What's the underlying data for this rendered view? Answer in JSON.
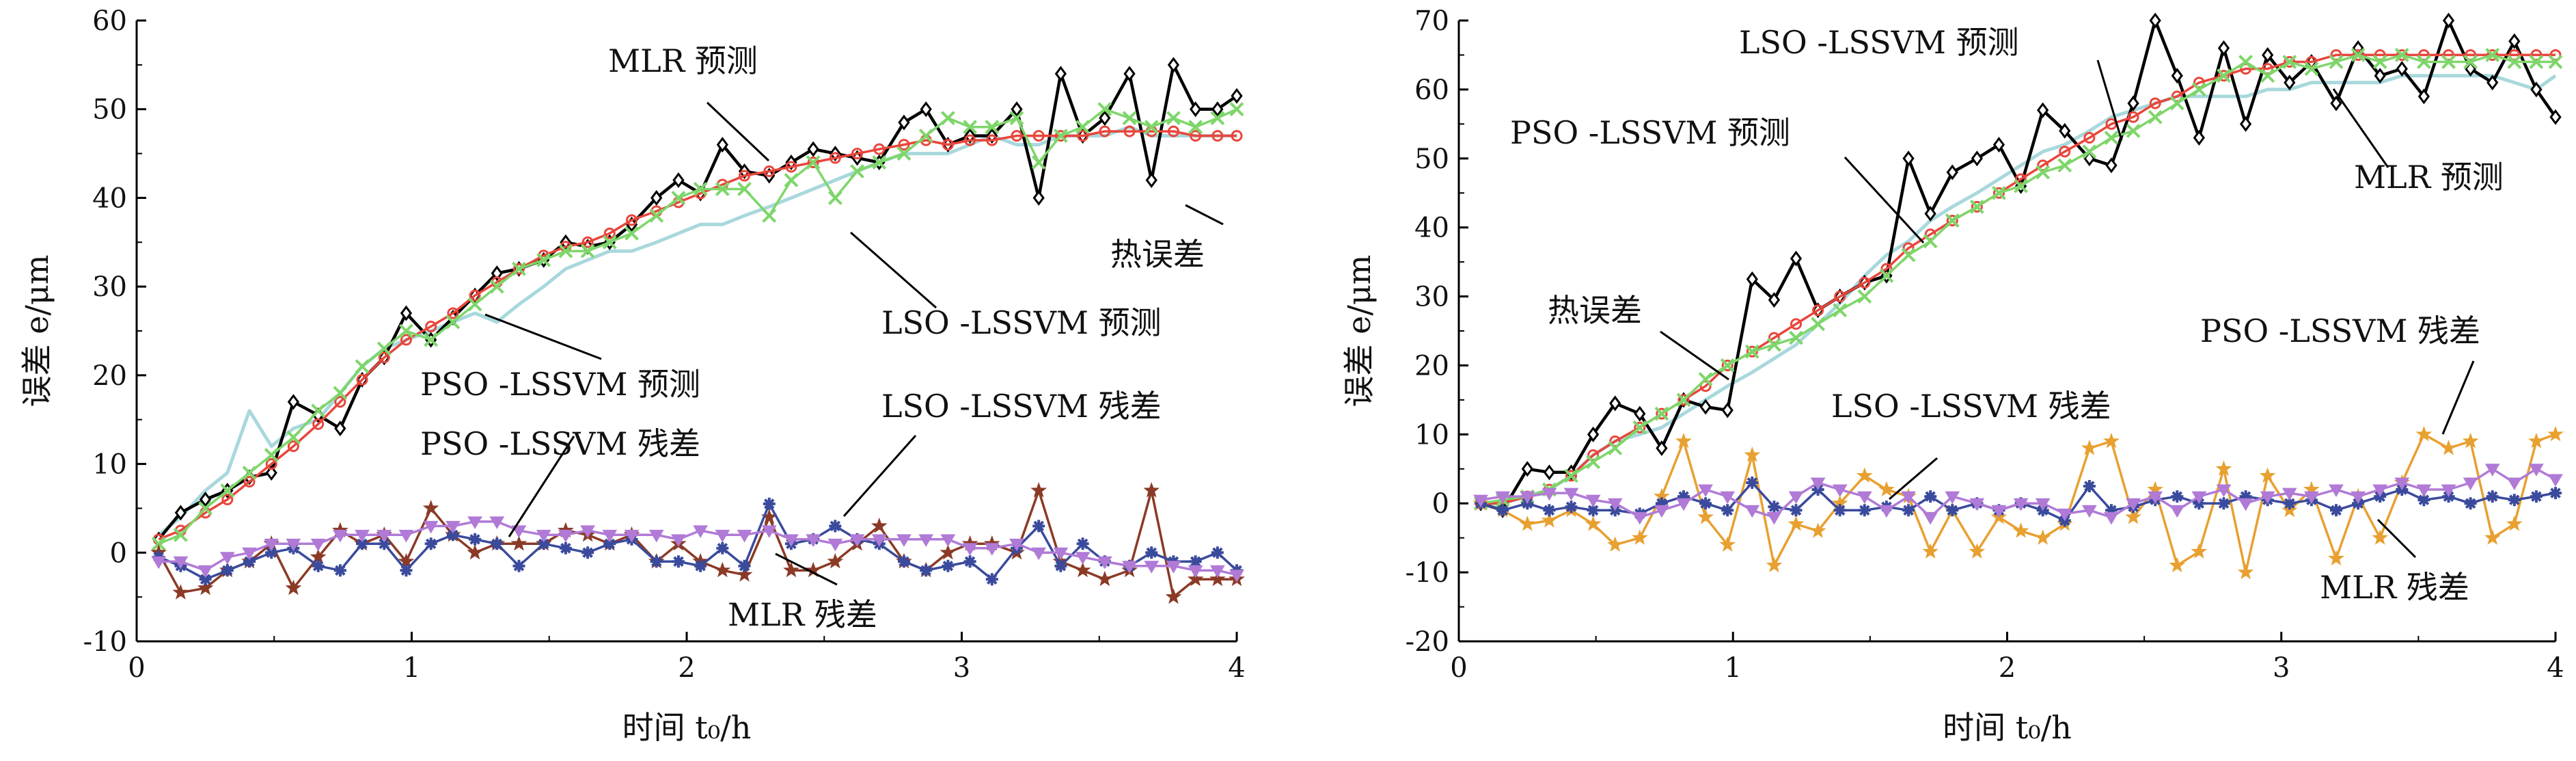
{
  "chart_data": [
    {
      "type": "line",
      "xlabel": "时间 t₀/h",
      "ylabel": "误差 e/μm",
      "xlim": [
        0,
        4
      ],
      "ylim": [
        -10,
        60
      ],
      "xticks": [
        "0",
        "1",
        "2",
        "3",
        "4"
      ],
      "yticks": [
        "-10",
        "0",
        "10",
        "20",
        "30",
        "40",
        "50",
        "60"
      ],
      "grid": false,
      "x": [
        0.08,
        0.16,
        0.25,
        0.33,
        0.41,
        0.49,
        0.57,
        0.66,
        0.74,
        0.82,
        0.9,
        0.98,
        1.07,
        1.15,
        1.23,
        1.31,
        1.39,
        1.48,
        1.56,
        1.64,
        1.72,
        1.8,
        1.89,
        1.97,
        2.05,
        2.13,
        2.21,
        2.3,
        2.38,
        2.46,
        2.54,
        2.62,
        2.7,
        2.79,
        2.87,
        2.95,
        3.03,
        3.11,
        3.2,
        3.28,
        3.36,
        3.44,
        3.52,
        3.61,
        3.69,
        3.77,
        3.85,
        3.93,
        4.0
      ],
      "series": [
        {
          "key": "actual",
          "color": "#a8d8dc",
          "marker": "none",
          "values": [
            2,
            4,
            7,
            9,
            16,
            12,
            14,
            15,
            18,
            21,
            23,
            24,
            25,
            26,
            27,
            26,
            28,
            30,
            32,
            33,
            34,
            34,
            35,
            36,
            37,
            37,
            38,
            39,
            40,
            41,
            42,
            43,
            44,
            45,
            45,
            45,
            46,
            47,
            46,
            46,
            47,
            47,
            47,
            48,
            47,
            47,
            47,
            47,
            47
          ]
        },
        {
          "key": "mlr_pred",
          "color": "#000000",
          "marker": "diamond",
          "values": [
            1.5,
            4.5,
            6,
            7,
            8.5,
            9,
            17,
            15.5,
            14,
            19.5,
            22,
            27,
            24,
            26.5,
            29,
            31.5,
            32,
            33,
            35,
            34.5,
            35,
            37,
            40,
            42,
            40.5,
            46,
            43,
            42.5,
            44,
            45.5,
            45,
            44.5,
            44,
            48.5,
            50,
            46,
            47,
            47,
            50,
            40,
            54,
            47,
            49,
            54,
            42,
            55,
            50,
            50,
            51.5
          ]
        },
        {
          "key": "pso_pred",
          "color": "#e8463c",
          "marker": "circle",
          "values": [
            1.5,
            2.5,
            4.5,
            6,
            8,
            10,
            12,
            14.5,
            17,
            19.5,
            22,
            24,
            25.5,
            27,
            29,
            30.5,
            32,
            33.5,
            34.5,
            35,
            36,
            37.5,
            38.5,
            39.5,
            40.5,
            41.5,
            42.5,
            43,
            43.5,
            44,
            44.5,
            45,
            45.5,
            46,
            46.5,
            46,
            46.5,
            46.5,
            47,
            47,
            47,
            47,
            47.5,
            47.5,
            47.5,
            47.5,
            47,
            47,
            47
          ]
        },
        {
          "key": "lso_pred",
          "color": "#7ed66a",
          "marker": "cross",
          "values": [
            1,
            2,
            5,
            7,
            9,
            11,
            13,
            16,
            18,
            21,
            23,
            25,
            24,
            26,
            28,
            30,
            32,
            33,
            34,
            34,
            35,
            36,
            38,
            40,
            41,
            41,
            41,
            38,
            42,
            44,
            40,
            43,
            44,
            45,
            47,
            49,
            48,
            48,
            49,
            44,
            47,
            48,
            50,
            49,
            48,
            49,
            48,
            49,
            50
          ]
        },
        {
          "key": "mlr_resid",
          "color": "#8b3a26",
          "marker": "star",
          "values": [
            0,
            -4.5,
            -4,
            -2,
            -1,
            1,
            -4,
            -0.5,
            2.5,
            1,
            2,
            -1,
            5,
            2,
            0,
            1,
            1,
            1,
            2.5,
            2,
            1,
            2,
            -1,
            1,
            -1,
            -2,
            -2.5,
            4,
            -2,
            -2,
            -1,
            1,
            3,
            -1,
            -2,
            0,
            1,
            1,
            0,
            7,
            -1,
            -2,
            -3,
            -2,
            7,
            -5,
            -3,
            -3,
            -3
          ]
        },
        {
          "key": "pso_resid",
          "color": "#3a4a9c",
          "marker": "asterisk",
          "values": [
            -0.5,
            -1.5,
            -3,
            -2,
            -1,
            0,
            0.5,
            -1.5,
            -2,
            1,
            1,
            -2,
            1,
            2,
            1.5,
            1,
            -1.5,
            1,
            0.5,
            0,
            1,
            1.5,
            -1,
            -1,
            -1.5,
            0.5,
            -1.5,
            5.5,
            1,
            1.5,
            3,
            1.5,
            1,
            -1,
            -2,
            -1.5,
            -1,
            -3,
            0.5,
            3,
            -1.5,
            1,
            -1,
            -1.5,
            0,
            -1,
            -1,
            0,
            -2
          ]
        },
        {
          "key": "lso_resid",
          "color": "#b07ad6",
          "marker": "triangle-down",
          "values": [
            -1,
            -1,
            -2,
            -0.5,
            0,
            1,
            1,
            1,
            2,
            2,
            2,
            2,
            3,
            3,
            3.5,
            3.5,
            2.5,
            2,
            2,
            2.5,
            2,
            2,
            2,
            1.5,
            2.5,
            2,
            2,
            2.5,
            1.5,
            1.5,
            1,
            1.5,
            1.5,
            1.5,
            1.5,
            1.5,
            0.5,
            0.5,
            1,
            0,
            0,
            -0.5,
            -1,
            -1.5,
            -1.5,
            -1.5,
            -2,
            -2,
            -2.5
          ]
        }
      ],
      "annotations": [
        "MLR 预测",
        "热误差",
        "LSO -LSSVM 预测",
        "PSO -LSSVM 预测",
        "PSO -LSSVM 残差",
        "LSO -LSSVM 残差",
        "MLR 残差"
      ]
    },
    {
      "type": "line",
      "xlabel": "时间 t₀/h",
      "ylabel": "误差 e/μm",
      "xlim": [
        0,
        4
      ],
      "ylim": [
        -20,
        70
      ],
      "xticks": [
        "0",
        "1",
        "2",
        "3",
        "4"
      ],
      "yticks": [
        "-20",
        "-10",
        "0",
        "10",
        "20",
        "30",
        "40",
        "50",
        "60",
        "70"
      ],
      "grid": false,
      "x": [
        0.08,
        0.16,
        0.25,
        0.33,
        0.41,
        0.49,
        0.57,
        0.66,
        0.74,
        0.82,
        0.9,
        0.98,
        1.07,
        1.15,
        1.23,
        1.31,
        1.39,
        1.48,
        1.56,
        1.64,
        1.72,
        1.8,
        1.89,
        1.97,
        2.05,
        2.13,
        2.21,
        2.3,
        2.38,
        2.46,
        2.54,
        2.62,
        2.7,
        2.79,
        2.87,
        2.95,
        3.03,
        3.11,
        3.2,
        3.28,
        3.36,
        3.44,
        3.52,
        3.61,
        3.69,
        3.77,
        3.85,
        3.93,
        4.0
      ],
      "series": [
        {
          "key": "actual",
          "color": "#a8d8dc",
          "marker": "none",
          "values": [
            0,
            0,
            1,
            2,
            4,
            7,
            9,
            10,
            11,
            13,
            15,
            17,
            19,
            21,
            23,
            26,
            29,
            33,
            36,
            38,
            41,
            43,
            45,
            47,
            49,
            51,
            52,
            54,
            56,
            57,
            58,
            59,
            59,
            59,
            59,
            60,
            60,
            61,
            61,
            61,
            61,
            62,
            62,
            62,
            62,
            62,
            61,
            60,
            62
          ]
        },
        {
          "key": "mlr_pred",
          "color": "#000000",
          "marker": "diamond",
          "values": [
            0,
            -1,
            5,
            4.5,
            4.5,
            10,
            14.5,
            13,
            8,
            15,
            14,
            13.5,
            32.5,
            29.5,
            35.5,
            28,
            30,
            32,
            33,
            50,
            42,
            48,
            50,
            52,
            46,
            57,
            54,
            50,
            49,
            58,
            70,
            62,
            53,
            66,
            55,
            65,
            61,
            64,
            58,
            66,
            62,
            63,
            59,
            70,
            63,
            61,
            67,
            60,
            56
          ]
        },
        {
          "key": "pso_pred",
          "color": "#e8463c",
          "marker": "circle",
          "values": [
            0,
            0,
            1,
            2,
            4,
            7,
            9,
            11,
            13,
            15,
            17,
            20,
            22,
            24,
            26,
            28,
            30,
            32,
            34,
            37,
            39,
            41,
            43,
            45,
            47,
            49,
            51,
            53,
            55,
            56,
            58,
            59,
            61,
            62,
            63,
            63,
            64,
            64,
            65,
            65,
            65,
            65,
            65,
            65,
            65,
            65,
            65,
            65,
            65
          ]
        },
        {
          "key": "lso_pred",
          "color": "#7ed66a",
          "marker": "cross",
          "values": [
            0,
            0.5,
            1,
            2,
            4,
            6,
            8,
            11,
            13,
            15,
            18,
            20,
            22,
            23,
            24,
            26,
            28,
            30,
            33,
            36,
            38,
            41,
            43,
            45,
            46,
            48,
            49,
            51,
            53,
            54,
            56,
            58,
            60,
            62,
            64,
            62,
            64,
            63,
            64,
            65,
            64,
            65,
            64,
            64,
            64,
            65,
            64,
            64,
            64
          ]
        },
        {
          "key": "mlr_resid",
          "color": "#e8a030",
          "marker": "star",
          "values": [
            0,
            -1,
            -3,
            -2.5,
            -1,
            -3,
            -6,
            -5,
            1,
            9,
            -2,
            -6,
            7,
            -9,
            -3,
            -4,
            0,
            4,
            2,
            1,
            -7,
            -1,
            -7,
            -2,
            -4,
            -5,
            -3,
            8,
            9,
            -2,
            2,
            -9,
            -7,
            5,
            -10,
            4,
            -1,
            2,
            -8,
            1,
            -5,
            3,
            10,
            8,
            9,
            -5,
            -3,
            9,
            10
          ]
        },
        {
          "key": "pso_resid",
          "color": "#3a4a9c",
          "marker": "asterisk",
          "values": [
            0,
            -1,
            0,
            -1,
            -0.5,
            -1,
            -1,
            -1.5,
            0,
            1,
            0,
            -1,
            3,
            -0.5,
            -1,
            2,
            -1,
            -1,
            -0.5,
            -1,
            1,
            -1,
            0,
            -1,
            0,
            -1,
            -2.5,
            2.5,
            -1,
            -0.5,
            0.5,
            1,
            0,
            0,
            1,
            0.5,
            0,
            0.5,
            -1,
            0,
            1,
            2,
            0.5,
            1,
            0,
            1,
            0.5,
            1,
            1.5
          ]
        },
        {
          "key": "lso_resid",
          "color": "#b07ad6",
          "marker": "triangle-down",
          "values": [
            0.5,
            1,
            1,
            1.5,
            1.5,
            0.5,
            0,
            -2,
            -1,
            0,
            2,
            1,
            -1,
            -2,
            1,
            3,
            2,
            1,
            -1,
            1,
            -2,
            1,
            0,
            -1,
            0,
            0,
            -1.5,
            -1,
            -2,
            0,
            1,
            -1,
            1,
            2,
            0,
            1,
            1.5,
            1,
            2,
            1,
            2,
            3,
            2,
            2,
            3,
            5,
            3,
            5,
            3.5
          ]
        }
      ],
      "annotations": [
        "LSO -LSSVM 预测",
        "PSO -LSSVM 预测",
        "MLR 预测",
        "热误差",
        "LSO -LSSVM 残差",
        "PSO -LSSVM 残差",
        "MLR 残差"
      ]
    }
  ]
}
